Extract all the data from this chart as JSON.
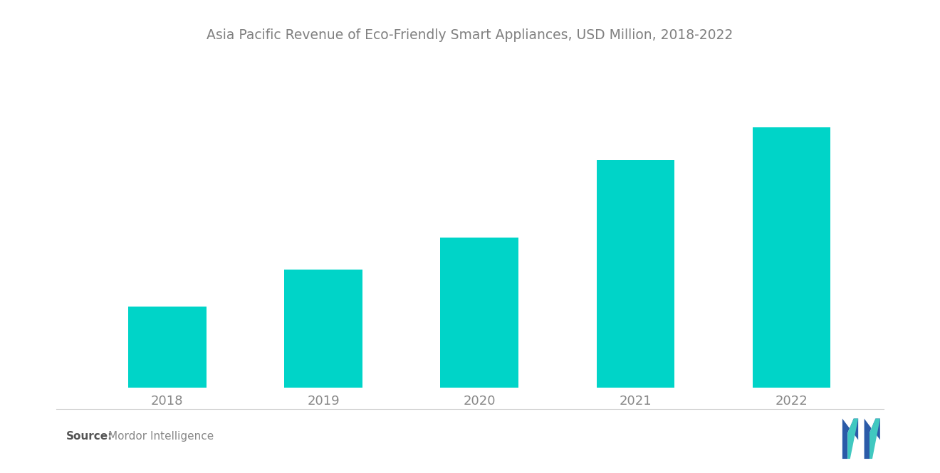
{
  "title": "Asia Pacific Revenue of Eco-Friendly Smart Appliances, USD Million, 2018-2022",
  "categories": [
    "2018",
    "2019",
    "2020",
    "2021",
    "2022"
  ],
  "values": [
    1.0,
    1.45,
    1.85,
    2.8,
    3.2
  ],
  "bar_color": "#00D4C8",
  "background_color": "#ffffff",
  "title_color": "#808080",
  "title_fontsize": 13.5,
  "tick_color": "#888888",
  "tick_fontsize": 13,
  "source_label": "Source:",
  "source_text": "Mordor Intelligence",
  "source_fontsize": 11,
  "bar_width": 0.5,
  "ylim_factor": 1.18
}
